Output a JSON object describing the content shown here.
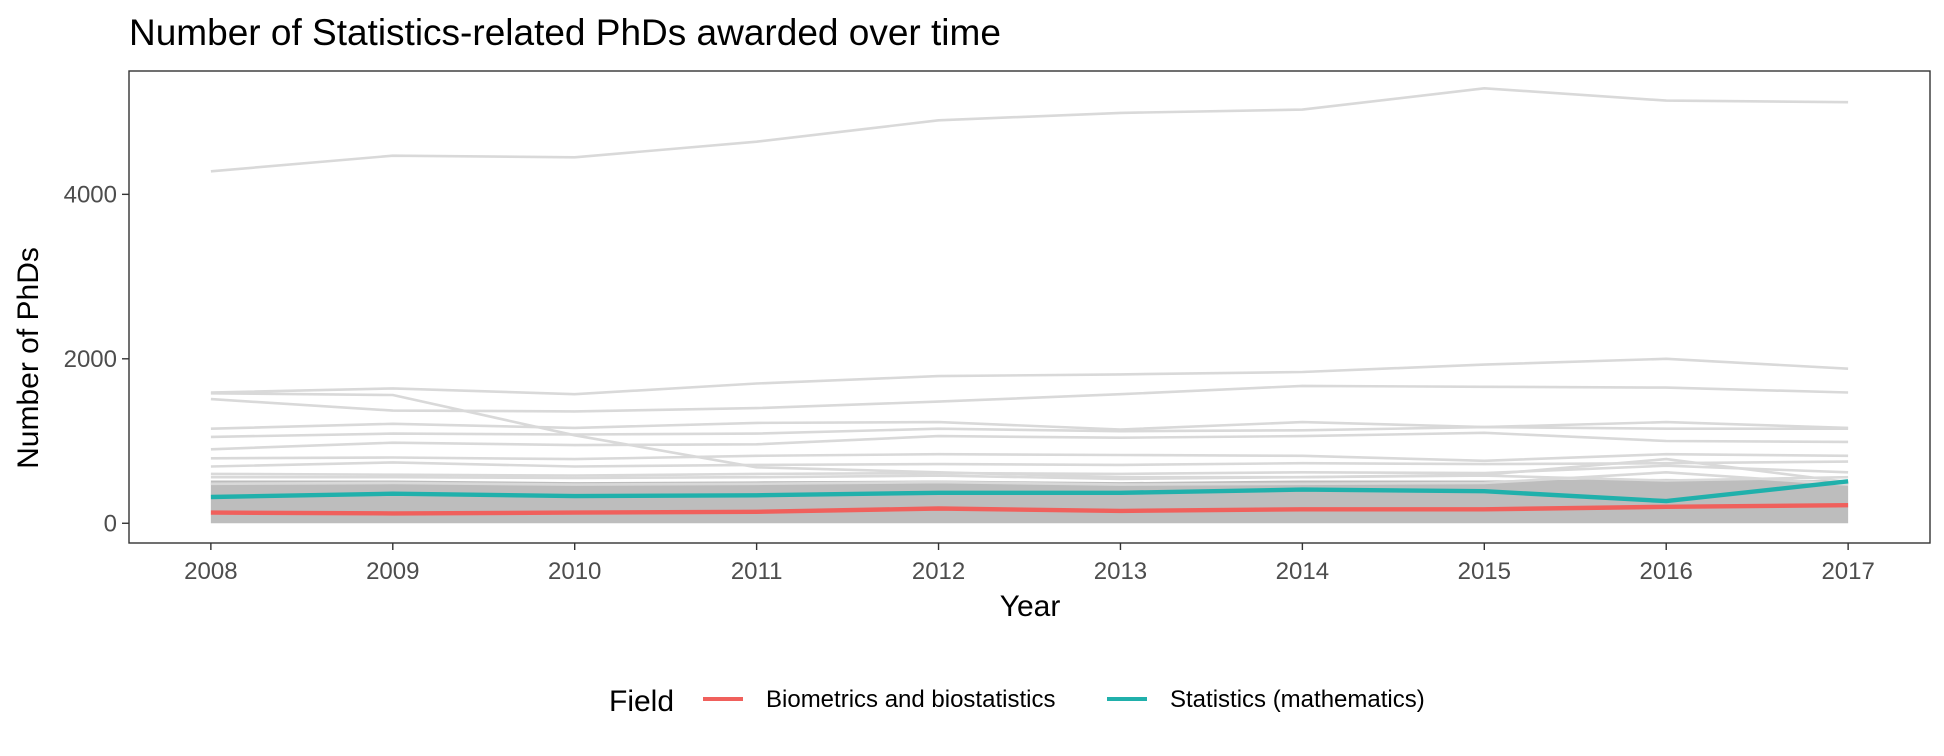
{
  "chart_data": {
    "type": "line",
    "title": "Number of Statistics-related PhDs awarded over time",
    "xlabel": "Year",
    "ylabel": "Number of PhDs",
    "x": [
      2008,
      2009,
      2010,
      2011,
      2012,
      2013,
      2014,
      2015,
      2016,
      2017
    ],
    "xlim": [
      2007.55,
      2017.45
    ],
    "ylim": [
      -240,
      5500
    ],
    "y_ticks": [
      0,
      2000,
      4000
    ],
    "x_ticks": [
      "2008",
      "2009",
      "2010",
      "2011",
      "2012",
      "2013",
      "2014",
      "2015",
      "2016",
      "2017"
    ],
    "grid": false,
    "colors": {
      "background_lines": "#d9d9d9",
      "band": "#bdbdbd",
      "biometrics": "#f0605c",
      "statistics": "#20b0ab",
      "panel_border": "#333333",
      "tick_text": "#4d4d4d"
    },
    "background_series": [
      {
        "values": [
          4280,
          4470,
          4450,
          4640,
          4900,
          4990,
          5030,
          5290,
          5140,
          5120
        ]
      },
      {
        "values": [
          1590,
          1640,
          1570,
          1700,
          1790,
          1810,
          1840,
          1930,
          2000,
          1880
        ]
      },
      {
        "values": [
          1510,
          1370,
          1360,
          1400,
          1480,
          1570,
          1670,
          1660,
          1650,
          1590
        ]
      },
      {
        "values": [
          1580,
          1560,
          1070,
          680,
          620,
          560,
          560,
          580,
          520,
          560
        ]
      },
      {
        "values": [
          1150,
          1210,
          1160,
          1220,
          1230,
          1140,
          1230,
          1170,
          1230,
          1160
        ]
      },
      {
        "values": [
          1050,
          1090,
          1080,
          1090,
          1150,
          1120,
          1130,
          1170,
          1150,
          1150
        ]
      },
      {
        "values": [
          900,
          980,
          950,
          960,
          1060,
          1040,
          1060,
          1100,
          1000,
          990
        ]
      },
      {
        "values": [
          790,
          800,
          780,
          820,
          840,
          830,
          820,
          760,
          840,
          820
        ]
      },
      {
        "values": [
          690,
          740,
          690,
          710,
          720,
          710,
          730,
          720,
          730,
          750
        ]
      },
      {
        "values": [
          560,
          560,
          550,
          560,
          580,
          540,
          560,
          590,
          780,
          500
        ]
      },
      {
        "values": [
          600,
          590,
          580,
          600,
          610,
          600,
          620,
          610,
          700,
          620
        ]
      },
      {
        "values": [
          480,
          490,
          470,
          480,
          500,
          470,
          480,
          490,
          620,
          470
        ]
      }
    ],
    "band": {
      "lower": 0,
      "upper": [
        520,
        520,
        500,
        510,
        520,
        500,
        520,
        520,
        540,
        520
      ]
    },
    "series": [
      {
        "name": "Biometrics and biostatistics",
        "color": "#f0605c",
        "values": [
          130,
          120,
          130,
          140,
          180,
          150,
          170,
          170,
          200,
          220
        ]
      },
      {
        "name": "Statistics (mathematics)",
        "color": "#20b0ab",
        "values": [
          320,
          360,
          330,
          340,
          370,
          370,
          410,
          390,
          270,
          510
        ]
      }
    ],
    "legend": {
      "title": "Field",
      "position": "bottom"
    }
  }
}
